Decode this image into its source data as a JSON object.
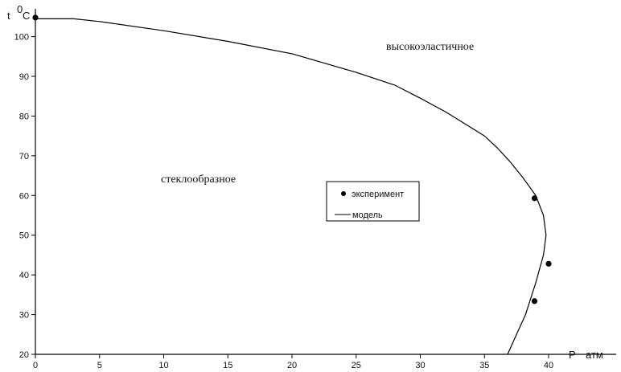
{
  "chart_data": {
    "type": "scatter",
    "x_axis": {
      "label": "P",
      "unit": "атм",
      "min": 0,
      "max": 40,
      "ticks": [
        0,
        5,
        10,
        15,
        20,
        25,
        30,
        35,
        40
      ]
    },
    "y_axis": {
      "label": "t",
      "unit_superscript": "0",
      "unit": "C",
      "min": 20,
      "max": 107,
      "ticks": [
        20,
        30,
        40,
        50,
        60,
        70,
        80,
        90,
        100
      ]
    },
    "grid": false,
    "legend": {
      "position": "center",
      "entries": [
        "эксперимент",
        "модель"
      ]
    },
    "series": [
      {
        "name": "эксперимент",
        "kind": "points",
        "x": [
          0,
          38.9,
          40,
          38.9
        ],
        "y": [
          104.8,
          59.3,
          42.8,
          33.4
        ]
      },
      {
        "name": "модель",
        "kind": "line",
        "x": [
          0,
          3,
          5,
          10,
          15,
          20,
          25,
          28,
          30,
          32,
          34,
          35,
          36,
          37,
          38,
          39,
          39.6,
          39.8,
          39.6,
          39,
          38.2,
          37.5,
          36.8
        ],
        "y": [
          104.5,
          104.5,
          103.8,
          101.5,
          98.8,
          95.7,
          91.0,
          87.8,
          84.5,
          81.0,
          77.0,
          75.0,
          72.0,
          68.5,
          64.5,
          60.0,
          55.0,
          50.0,
          45.0,
          38.0,
          30.0,
          25.0,
          20.0
        ]
      }
    ],
    "annotations": [
      "высокоэластичное",
      "стеклообразное"
    ]
  }
}
